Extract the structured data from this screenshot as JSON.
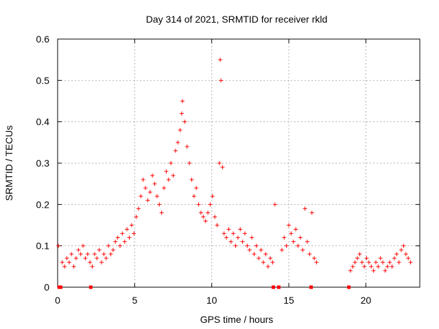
{
  "chart_data": {
    "type": "scatter",
    "title": "Day 314 of 2021, SRMTID for receiver rkld",
    "xlabel": "GPS time / hours",
    "ylabel": "SRMTID / TECUs",
    "xlim": [
      0,
      23.5
    ],
    "ylim": [
      0,
      0.6
    ],
    "x_ticks": [
      0,
      5,
      10,
      15,
      20
    ],
    "y_ticks": [
      0,
      0.1,
      0.2,
      0.3,
      0.4,
      0.5,
      0.6
    ],
    "x_tick_labels": [
      "0",
      "5",
      "10",
      "15",
      "20"
    ],
    "y_tick_labels": [
      "0",
      "0.1",
      "0.2",
      "0.3",
      "0.4",
      "0.5",
      "0.6"
    ],
    "grid": true,
    "marker": "+",
    "color": "#ff0000",
    "series": [
      {
        "name": "SRMTID",
        "x": [
          0.05,
          0.3,
          0.45,
          0.6,
          0.75,
          0.9,
          1.05,
          1.2,
          1.35,
          1.5,
          1.65,
          1.8,
          1.95,
          2.1,
          2.25,
          2.4,
          2.55,
          2.7,
          2.85,
          3.0,
          3.15,
          3.3,
          3.45,
          3.6,
          3.75,
          3.9,
          4.05,
          4.2,
          4.35,
          4.5,
          4.65,
          4.8,
          4.95,
          5.1,
          5.25,
          5.4,
          5.55,
          5.7,
          5.85,
          6.0,
          6.15,
          6.3,
          6.45,
          6.6,
          6.75,
          6.9,
          7.05,
          7.2,
          7.35,
          7.5,
          7.65,
          7.8,
          7.95,
          8.05,
          8.1,
          8.25,
          8.4,
          8.55,
          8.7,
          8.85,
          9.0,
          9.15,
          9.3,
          9.45,
          9.6,
          9.75,
          9.9,
          10.05,
          10.2,
          10.35,
          10.5,
          10.55,
          10.6,
          10.7,
          10.8,
          10.95,
          11.1,
          11.25,
          11.4,
          11.55,
          11.7,
          11.85,
          12.0,
          12.15,
          12.3,
          12.45,
          12.6,
          12.75,
          12.9,
          13.05,
          13.2,
          13.35,
          13.5,
          13.65,
          13.8,
          13.95,
          14.1,
          14.55,
          14.7,
          14.85,
          15.0,
          15.15,
          15.3,
          15.45,
          15.6,
          15.75,
          15.9,
          16.05,
          16.2,
          16.35,
          16.5,
          16.65,
          16.8,
          19.0,
          19.15,
          19.3,
          19.45,
          19.6,
          19.75,
          19.9,
          20.05,
          20.2,
          20.35,
          20.5,
          20.65,
          20.8,
          20.95,
          21.1,
          21.25,
          21.4,
          21.55,
          21.7,
          21.85,
          22.0,
          22.15,
          22.3,
          22.45,
          22.6,
          22.75,
          22.9
        ],
        "y": [
          0.1,
          0.06,
          0.05,
          0.07,
          0.06,
          0.08,
          0.05,
          0.07,
          0.09,
          0.08,
          0.1,
          0.07,
          0.08,
          0.06,
          0.05,
          0.08,
          0.07,
          0.09,
          0.06,
          0.08,
          0.07,
          0.1,
          0.08,
          0.09,
          0.11,
          0.12,
          0.1,
          0.13,
          0.11,
          0.14,
          0.12,
          0.15,
          0.13,
          0.17,
          0.19,
          0.22,
          0.26,
          0.24,
          0.21,
          0.23,
          0.27,
          0.25,
          0.22,
          0.2,
          0.18,
          0.24,
          0.28,
          0.26,
          0.3,
          0.27,
          0.33,
          0.35,
          0.38,
          0.42,
          0.45,
          0.4,
          0.34,
          0.3,
          0.26,
          0.22,
          0.24,
          0.2,
          0.18,
          0.17,
          0.16,
          0.18,
          0.2,
          0.22,
          0.17,
          0.15,
          0.3,
          0.55,
          0.5,
          0.29,
          0.13,
          0.12,
          0.14,
          0.11,
          0.13,
          0.1,
          0.12,
          0.14,
          0.11,
          0.13,
          0.1,
          0.09,
          0.12,
          0.08,
          0.1,
          0.07,
          0.09,
          0.06,
          0.08,
          0.05,
          0.07,
          0.06,
          0.2,
          0.09,
          0.12,
          0.1,
          0.15,
          0.13,
          0.11,
          0.14,
          0.1,
          0.12,
          0.09,
          0.19,
          0.11,
          0.08,
          0.18,
          0.07,
          0.06,
          0.04,
          0.05,
          0.06,
          0.07,
          0.08,
          0.06,
          0.05,
          0.07,
          0.06,
          0.05,
          0.04,
          0.06,
          0.05,
          0.07,
          0.06,
          0.04,
          0.05,
          0.06,
          0.05,
          0.07,
          0.08,
          0.06,
          0.09,
          0.1,
          0.08,
          0.07,
          0.06
        ]
      }
    ],
    "gap_markers_x": [
      0.1,
      0.2,
      2.15,
      14.0,
      14.35,
      16.45,
      18.9
    ]
  }
}
